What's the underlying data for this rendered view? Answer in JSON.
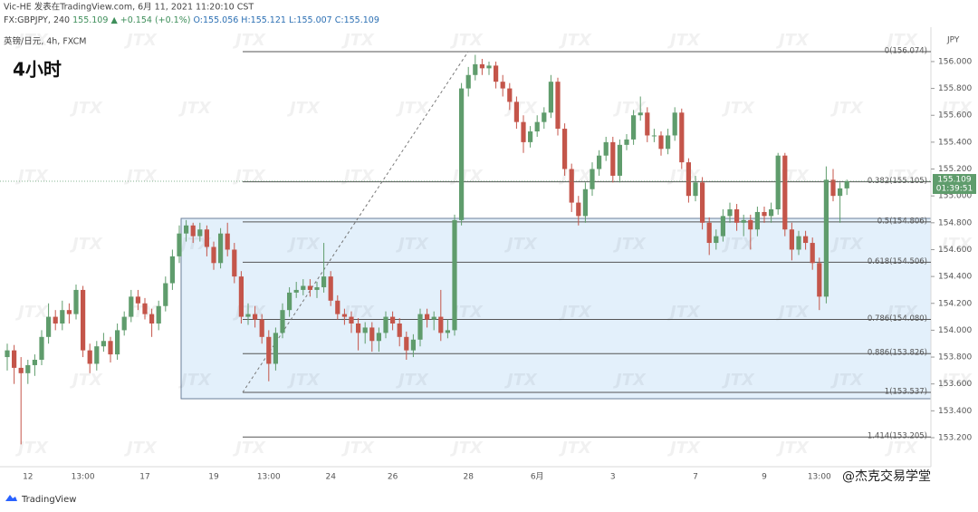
{
  "header": {
    "line1": "Vic-HE 发表在TradingView.com, 6月 11, 2021 11:20:10 CST",
    "symbol": "FX:GBPJPY, 240",
    "price": "155.109",
    "change": "▲ +0.154 (+0.1%)",
    "ohlc_text": "O:155.056 H:155.121 L:155.007 C:155.109",
    "pair": "英镑/日元, 4h, FXCM",
    "timeframe": "4小时"
  },
  "footer": {
    "brand": "TradingView",
    "credit": "@杰克交易学堂",
    "watermark": "JTX"
  },
  "chart_data": {
    "type": "candlestick",
    "currency": "JPY",
    "last_price": {
      "value": 155.109,
      "label": "155.109"
    },
    "countdown": "01:39:51",
    "up_color": "#5f9c6c",
    "down_color": "#c4554a",
    "grid": false,
    "ylim": [
      152.984,
      156.256
    ],
    "yticks": [
      {
        "value": 153.2,
        "label": "153.200"
      },
      {
        "value": 153.4,
        "label": "153.400"
      },
      {
        "value": 153.6,
        "label": "153.600"
      },
      {
        "value": 153.8,
        "label": "153.800"
      },
      {
        "value": 154,
        "label": "154.000"
      },
      {
        "value": 154.2,
        "label": "154.200"
      },
      {
        "value": 154.4,
        "label": "154.400"
      },
      {
        "value": 154.6,
        "label": "154.600"
      },
      {
        "value": 154.8,
        "label": "154.800"
      },
      {
        "value": 155,
        "label": "155.000"
      },
      {
        "value": 155.2,
        "label": "155.200"
      },
      {
        "value": 155.4,
        "label": "155.400"
      },
      {
        "value": 155.6,
        "label": "155.600"
      },
      {
        "value": 155.8,
        "label": "155.800"
      },
      {
        "value": 156,
        "label": "156.000"
      }
    ],
    "fib_levels": [
      {
        "label": "0(156.074)",
        "value": 156.074
      },
      {
        "label": "0.382(155.105)",
        "value": 155.105
      },
      {
        "label": "0.5(154.806)",
        "value": 154.806
      },
      {
        "label": "0.618(154.506)",
        "value": 154.506
      },
      {
        "label": "0.786(154.080)",
        "value": 154.08
      },
      {
        "label": "0.886(153.826)",
        "value": 153.826
      },
      {
        "label": "1(153.537)",
        "value": 153.537
      },
      {
        "label": "1.414(153.205)",
        "value": 153.205
      }
    ],
    "categories": [
      null,
      null,
      null,
      "12",
      null,
      null,
      null,
      null,
      null,
      null,
      null,
      "13:00",
      null,
      null,
      null,
      null,
      null,
      null,
      null,
      null,
      "17",
      null,
      null,
      null,
      null,
      null,
      null,
      null,
      null,
      null,
      "19",
      null,
      null,
      null,
      null,
      null,
      null,
      null,
      "13:00",
      null,
      null,
      null,
      null,
      null,
      null,
      null,
      null,
      "24",
      null,
      null,
      null,
      null,
      null,
      null,
      null,
      null,
      "26",
      null,
      null,
      null,
      null,
      null,
      null,
      null,
      null,
      null,
      null,
      "28",
      null,
      null,
      null,
      null,
      null,
      null,
      null,
      null,
      null,
      "6月",
      null,
      null,
      null,
      null,
      null,
      null,
      null,
      null,
      null,
      null,
      "3",
      null,
      null,
      null,
      null,
      null,
      null,
      null,
      null,
      null,
      null,
      null,
      "7",
      null,
      null,
      null,
      null,
      null,
      null,
      null,
      null,
      null,
      "9",
      null,
      null,
      null,
      null,
      null,
      null,
      null,
      "13:00",
      null,
      null,
      null,
      null
    ],
    "ohlc": [
      [
        153.8,
        153.9,
        153.7,
        153.85
      ],
      [
        153.85,
        153.89,
        153.6,
        153.72
      ],
      [
        153.72,
        153.8,
        153.15,
        153.68
      ],
      [
        153.68,
        153.78,
        153.6,
        153.74
      ],
      [
        153.74,
        153.82,
        153.66,
        153.78
      ],
      [
        153.78,
        154.0,
        153.74,
        153.95
      ],
      [
        153.95,
        154.2,
        153.9,
        154.1
      ],
      [
        154.1,
        154.15,
        154.0,
        154.05
      ],
      [
        154.05,
        154.22,
        154.0,
        154.15
      ],
      [
        154.15,
        154.2,
        154.05,
        154.12
      ],
      [
        154.12,
        154.34,
        154.08,
        154.3
      ],
      [
        154.3,
        154.33,
        153.8,
        153.85
      ],
      [
        153.85,
        153.9,
        153.68,
        153.75
      ],
      [
        153.75,
        153.92,
        153.7,
        153.88
      ],
      [
        153.88,
        153.98,
        153.84,
        153.92
      ],
      [
        153.92,
        153.95,
        153.76,
        153.82
      ],
      [
        153.82,
        154.05,
        153.78,
        154.0
      ],
      [
        154.0,
        154.14,
        153.96,
        154.1
      ],
      [
        154.1,
        154.3,
        154.06,
        154.25
      ],
      [
        154.25,
        154.3,
        154.15,
        154.2
      ],
      [
        154.2,
        154.24,
        154.08,
        154.12
      ],
      [
        154.12,
        154.16,
        153.95,
        154.05
      ],
      [
        154.05,
        154.22,
        154.0,
        154.18
      ],
      [
        154.18,
        154.4,
        154.14,
        154.35
      ],
      [
        154.35,
        154.6,
        154.3,
        154.55
      ],
      [
        154.55,
        154.78,
        154.5,
        154.72
      ],
      [
        154.72,
        154.82,
        154.66,
        154.78
      ],
      [
        154.78,
        154.8,
        154.65,
        154.7
      ],
      [
        154.7,
        154.8,
        154.66,
        154.75
      ],
      [
        154.75,
        154.78,
        154.55,
        154.62
      ],
      [
        154.62,
        154.66,
        154.45,
        154.5
      ],
      [
        154.5,
        154.76,
        154.46,
        154.72
      ],
      [
        154.72,
        154.8,
        154.55,
        154.6
      ],
      [
        154.6,
        154.65,
        154.35,
        154.4
      ],
      [
        154.4,
        154.44,
        154.05,
        154.1
      ],
      [
        154.1,
        154.2,
        154.04,
        154.12
      ],
      [
        154.12,
        154.18,
        154.02,
        154.08
      ],
      [
        154.08,
        154.12,
        153.9,
        153.95
      ],
      [
        153.95,
        154.0,
        153.62,
        153.75
      ],
      [
        153.75,
        154.02,
        153.7,
        153.98
      ],
      [
        153.98,
        154.2,
        153.94,
        154.15
      ],
      [
        154.15,
        154.32,
        154.1,
        154.28
      ],
      [
        154.28,
        154.36,
        154.24,
        154.3
      ],
      [
        154.3,
        154.38,
        154.26,
        154.33
      ],
      [
        154.33,
        154.38,
        154.25,
        154.3
      ],
      [
        154.3,
        154.36,
        154.24,
        154.32
      ],
      [
        154.32,
        154.65,
        154.28,
        154.4
      ],
      [
        154.4,
        154.44,
        154.18,
        154.22
      ],
      [
        154.22,
        154.26,
        154.08,
        154.12
      ],
      [
        154.12,
        154.16,
        154.04,
        154.1
      ],
      [
        154.1,
        154.14,
        153.98,
        154.05
      ],
      [
        154.05,
        154.09,
        153.85,
        153.98
      ],
      [
        153.98,
        154.06,
        153.9,
        154.02
      ],
      [
        154.02,
        154.06,
        153.84,
        153.92
      ],
      [
        153.92,
        154.02,
        153.84,
        153.98
      ],
      [
        153.98,
        154.14,
        153.94,
        154.1
      ],
      [
        154.1,
        154.14,
        154.0,
        154.05
      ],
      [
        154.05,
        154.09,
        153.88,
        153.95
      ],
      [
        153.95,
        153.99,
        153.78,
        153.85
      ],
      [
        153.85,
        153.97,
        153.8,
        153.93
      ],
      [
        153.93,
        154.16,
        153.88,
        154.12
      ],
      [
        154.12,
        154.16,
        154.02,
        154.08
      ],
      [
        154.08,
        154.14,
        154.0,
        154.1
      ],
      [
        154.1,
        154.3,
        153.92,
        153.98
      ],
      [
        153.98,
        154.08,
        153.94,
        154.0
      ],
      [
        154.0,
        154.86,
        153.96,
        154.82
      ],
      [
        154.82,
        155.84,
        154.78,
        155.8
      ],
      [
        155.8,
        155.96,
        155.74,
        155.9
      ],
      [
        155.9,
        156.05,
        155.86,
        155.98
      ],
      [
        155.98,
        156.02,
        155.9,
        155.95
      ],
      [
        155.95,
        156.0,
        155.9,
        155.97
      ],
      [
        155.97,
        156.0,
        155.8,
        155.85
      ],
      [
        155.85,
        155.9,
        155.74,
        155.8
      ],
      [
        155.8,
        155.84,
        155.64,
        155.7
      ],
      [
        155.7,
        155.74,
        155.5,
        155.55
      ],
      [
        155.55,
        155.6,
        155.32,
        155.4
      ],
      [
        155.4,
        155.52,
        155.36,
        155.48
      ],
      [
        155.48,
        155.6,
        155.44,
        155.55
      ],
      [
        155.55,
        155.66,
        155.5,
        155.62
      ],
      [
        155.62,
        155.9,
        155.58,
        155.85
      ],
      [
        155.85,
        155.88,
        155.45,
        155.5
      ],
      [
        155.5,
        155.54,
        155.15,
        155.2
      ],
      [
        155.2,
        155.24,
        154.88,
        154.95
      ],
      [
        154.95,
        155.0,
        154.78,
        154.85
      ],
      [
        154.85,
        155.1,
        154.8,
        155.05
      ],
      [
        155.05,
        155.25,
        155.0,
        155.2
      ],
      [
        155.2,
        155.34,
        155.15,
        155.3
      ],
      [
        155.3,
        155.44,
        155.26,
        155.4
      ],
      [
        155.4,
        155.44,
        155.1,
        155.15
      ],
      [
        155.15,
        155.42,
        155.1,
        155.38
      ],
      [
        155.38,
        155.46,
        155.34,
        155.42
      ],
      [
        155.42,
        155.64,
        155.38,
        155.6
      ],
      [
        155.6,
        155.74,
        155.56,
        155.62
      ],
      [
        155.62,
        155.66,
        155.4,
        155.45
      ],
      [
        155.45,
        155.5,
        155.4,
        155.45
      ],
      [
        155.45,
        155.48,
        155.3,
        155.35
      ],
      [
        155.35,
        155.5,
        155.31,
        155.45
      ],
      [
        155.45,
        155.66,
        155.41,
        155.62
      ],
      [
        155.62,
        155.65,
        155.2,
        155.25
      ],
      [
        155.25,
        155.28,
        154.95,
        155.0
      ],
      [
        155.0,
        155.15,
        154.96,
        155.1
      ],
      [
        155.1,
        155.14,
        154.75,
        154.8
      ],
      [
        154.8,
        154.84,
        154.56,
        154.65
      ],
      [
        154.65,
        154.75,
        154.6,
        154.7
      ],
      [
        154.7,
        154.9,
        154.66,
        154.85
      ],
      [
        154.85,
        154.95,
        154.8,
        154.9
      ],
      [
        154.9,
        154.94,
        154.74,
        154.8
      ],
      [
        154.8,
        154.86,
        154.7,
        154.82
      ],
      [
        154.82,
        154.86,
        154.6,
        154.75
      ],
      [
        154.75,
        154.92,
        154.7,
        154.88
      ],
      [
        154.88,
        154.92,
        154.8,
        154.85
      ],
      [
        154.85,
        154.95,
        154.8,
        154.9
      ],
      [
        154.9,
        155.32,
        154.86,
        155.3
      ],
      [
        155.3,
        155.32,
        154.7,
        154.75
      ],
      [
        154.75,
        154.8,
        154.52,
        154.6
      ],
      [
        154.6,
        154.74,
        154.56,
        154.7
      ],
      [
        154.7,
        154.74,
        154.6,
        154.65
      ],
      [
        154.65,
        154.69,
        154.45,
        154.5
      ],
      [
        154.5,
        154.54,
        154.15,
        154.25
      ],
      [
        154.25,
        155.22,
        154.2,
        155.12
      ],
      [
        155.12,
        155.2,
        154.96,
        155.0
      ],
      [
        155.0,
        155.1,
        154.8,
        155.056
      ],
      [
        155.056,
        155.121,
        155.007,
        155.109
      ]
    ]
  }
}
